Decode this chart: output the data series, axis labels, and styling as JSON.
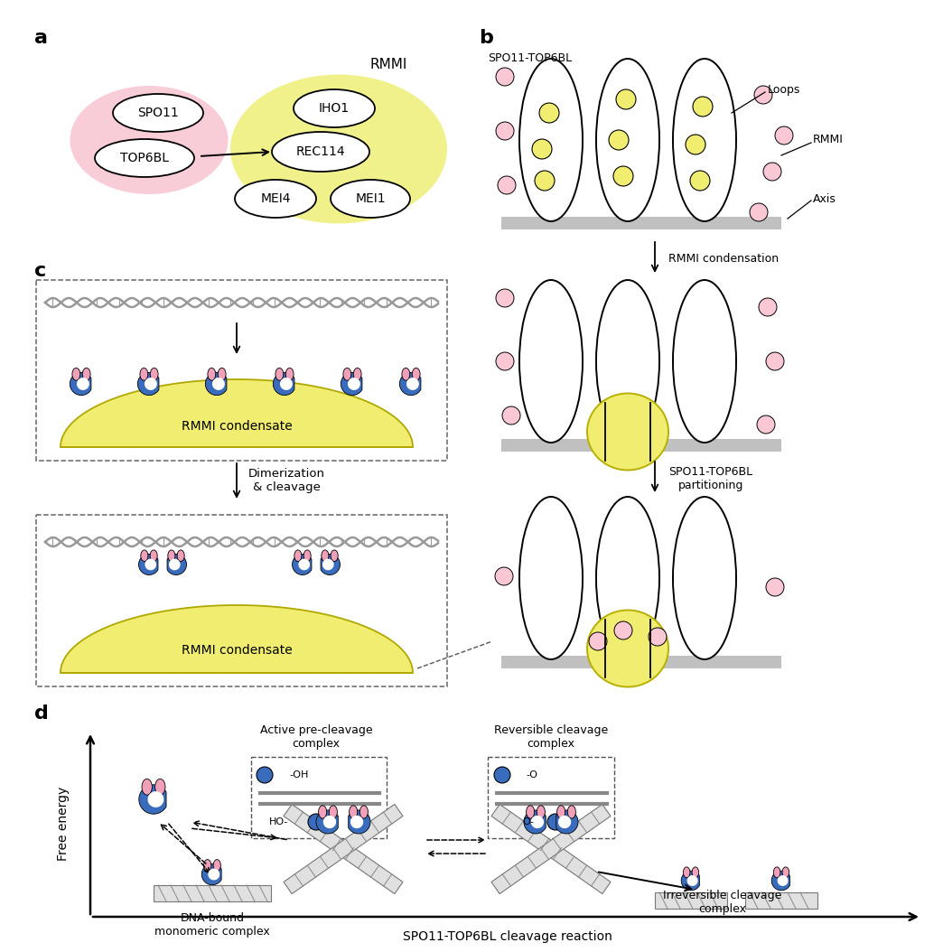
{
  "bg_color": "#ffffff",
  "pink_bg": "#f9c8d4",
  "yellow_bg": "#f0f080",
  "yellow_condensate": "#f0ed70",
  "blue_color": "#3a6cbd",
  "pink_protein": "#f0a0b8",
  "gray_axis": "#c0c0c0",
  "gray_dna": "#999999",
  "panel_labels": [
    "a",
    "b",
    "c",
    "d"
  ],
  "rmmi_condensate_text": "RMMI condensate",
  "dimerization_text": "Dimerization\n& cleavage",
  "free_energy_text": "Free energy",
  "cleavage_text": "SPO11-TOP6BL cleavage reaction",
  "active_complex_text": "Active pre-cleavage\ncomplex",
  "reversible_complex_text": "Reversible cleavage\ncomplex",
  "dna_bound_text": "DNA-bound\nmonomeric complex",
  "irreversible_text": "Irreversible cleavage\ncomplex"
}
